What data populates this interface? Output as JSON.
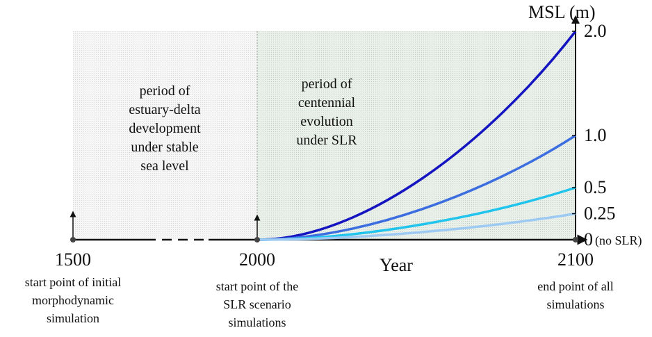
{
  "y_axis": {
    "title": "MSL (m)",
    "ticks": [
      {
        "value": 0,
        "label": "0"
      },
      {
        "value": 0.25,
        "label": "0.25"
      },
      {
        "value": 0.5,
        "label": "0.5"
      },
      {
        "value": 1,
        "label": "1.0"
      },
      {
        "value": 2,
        "label": "2.0"
      }
    ],
    "baseline_note": "(no SLR)"
  },
  "x_axis": {
    "title": "Year",
    "points": [
      {
        "label": "1500",
        "note": [
          "start point of initial",
          "morphodynamic",
          "simulation"
        ]
      },
      {
        "label": "2000",
        "note": [
          "start point of the",
          "SLR scenario",
          "simulations"
        ]
      },
      {
        "label": "2100",
        "note": [
          "end point of all",
          "simulations"
        ]
      }
    ]
  },
  "periods": [
    {
      "lines": [
        "period of",
        "estuary-delta",
        "development",
        "under stable",
        "sea level"
      ]
    },
    {
      "lines": [
        "period of",
        "centennial",
        "evolution",
        "under SLR"
      ]
    }
  ],
  "scenarios": [
    {
      "value": 2,
      "color": "#1414c0"
    },
    {
      "value": 1,
      "color": "#3c6ee0"
    },
    {
      "value": 0.5,
      "color": "#20c4ec"
    },
    {
      "value": 0.25,
      "color": "#9ccaf2"
    }
  ]
}
